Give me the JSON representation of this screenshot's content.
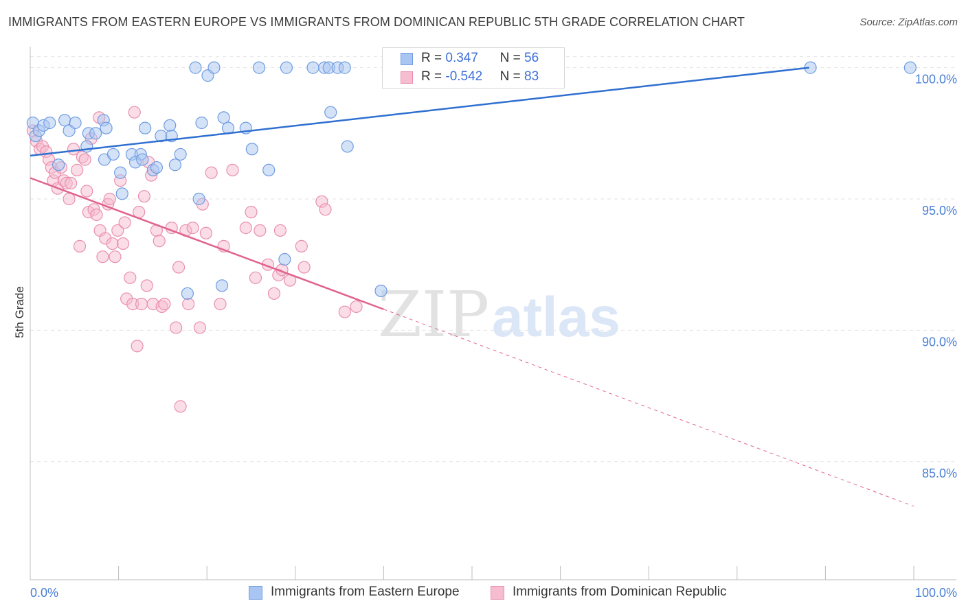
{
  "title": "IMMIGRANTS FROM EASTERN EUROPE VS IMMIGRANTS FROM DOMINICAN REPUBLIC 5TH GRADE CORRELATION CHART",
  "source": "Source: ZipAtlas.com",
  "watermark": {
    "zip": "ZIP",
    "atlas": "atlas"
  },
  "colors": {
    "blue_fill": "#a9c6f2",
    "blue_stroke": "#6f9ce0",
    "blue_line": "#2f6fd0",
    "pink_fill": "#f6bcd0",
    "pink_stroke": "#e98fae",
    "pink_line": "#e0648e",
    "grid": "#e2e2e2",
    "tick_label": "#4a7fd4"
  },
  "legend": {
    "rows": [
      {
        "r_label": "R = ",
        "r_value": "0.347",
        "n_label": "N = ",
        "n_value": "56"
      },
      {
        "r_label": "R = ",
        "r_value": "-0.542",
        "n_label": "N = ",
        "n_value": "83"
      }
    ]
  },
  "chart_data": {
    "type": "scatter",
    "title": "IMMIGRANTS FROM EASTERN EUROPE VS IMMIGRANTS FROM DOMINICAN REPUBLIC 5TH GRADE CORRELATION CHART",
    "xlabel": "",
    "ylabel": "5th Grade",
    "xlim": [
      0,
      100
    ],
    "ylim": [
      80.5,
      100.8
    ],
    "x_tick_labels": [
      "0.0%",
      "100.0%"
    ],
    "y_ticks": [
      85,
      90,
      95,
      100
    ],
    "y_tick_labels": [
      "85.0%",
      "90.0%",
      "95.0%",
      "100.0%"
    ],
    "grid": true,
    "legend_position": "top-center",
    "series": [
      {
        "name": "Immigrants from Eastern Europe",
        "color": "#a9c6f2",
        "r": 0.347,
        "n": 56,
        "trend": {
          "x0": 0,
          "y0": 96.65,
          "x1": 100,
          "y1": 100.45,
          "dash_after": null
        },
        "points": [
          [
            0.3,
            97.9
          ],
          [
            0.6,
            97.4
          ],
          [
            1.0,
            97.6
          ],
          [
            1.5,
            97.8
          ],
          [
            2.2,
            97.9
          ],
          [
            3.2,
            96.3
          ],
          [
            3.9,
            98.0
          ],
          [
            4.4,
            97.6
          ],
          [
            5.1,
            97.9
          ],
          [
            6.4,
            97.0
          ],
          [
            6.6,
            97.5
          ],
          [
            7.4,
            97.5
          ],
          [
            8.3,
            98.0
          ],
          [
            8.6,
            97.7
          ],
          [
            8.4,
            96.5
          ],
          [
            9.4,
            96.7
          ],
          [
            10.2,
            96.0
          ],
          [
            10.4,
            95.2
          ],
          [
            11.5,
            96.7
          ],
          [
            12.5,
            96.7
          ],
          [
            11.9,
            96.4
          ],
          [
            12.7,
            96.5
          ],
          [
            13.0,
            97.7
          ],
          [
            13.9,
            96.1
          ],
          [
            14.3,
            96.2
          ],
          [
            14.8,
            97.4
          ],
          [
            15.8,
            97.8
          ],
          [
            16.0,
            97.4
          ],
          [
            17.0,
            96.7
          ],
          [
            16.4,
            96.3
          ],
          [
            17.8,
            91.4
          ],
          [
            18.7,
            100.0
          ],
          [
            19.1,
            95.0
          ],
          [
            19.4,
            97.9
          ],
          [
            20.1,
            99.7
          ],
          [
            20.8,
            100.0
          ],
          [
            21.7,
            91.7
          ],
          [
            21.9,
            98.1
          ],
          [
            22.4,
            97.7
          ],
          [
            24.4,
            97.7
          ],
          [
            25.1,
            96.9
          ],
          [
            25.9,
            100.0
          ],
          [
            27.0,
            96.1
          ],
          [
            28.8,
            92.7
          ],
          [
            29.0,
            100.0
          ],
          [
            32.0,
            100.0
          ],
          [
            33.3,
            100.0
          ],
          [
            33.8,
            100.0
          ],
          [
            34.0,
            98.3
          ],
          [
            34.8,
            100.0
          ],
          [
            35.6,
            100.0
          ],
          [
            35.9,
            97.0
          ],
          [
            39.7,
            91.5
          ],
          [
            44.1,
            100.0
          ],
          [
            88.3,
            100.0
          ],
          [
            99.6,
            100.0
          ]
        ]
      },
      {
        "name": "Immigrants from Dominican Republic",
        "color": "#f6bcd0",
        "r": -0.542,
        "n": 83,
        "trend": {
          "x0": 0,
          "y0": 95.8,
          "x1": 100,
          "y1": 83.3,
          "dash_after": 40
        },
        "points": [
          [
            0.3,
            97.6
          ],
          [
            0.7,
            97.2
          ],
          [
            1.1,
            96.9
          ],
          [
            1.4,
            97.0
          ],
          [
            1.8,
            96.8
          ],
          [
            2.1,
            96.5
          ],
          [
            2.4,
            96.2
          ],
          [
            2.6,
            95.7
          ],
          [
            2.8,
            96.0
          ],
          [
            3.1,
            95.4
          ],
          [
            3.5,
            96.2
          ],
          [
            3.8,
            95.7
          ],
          [
            4.1,
            95.6
          ],
          [
            4.4,
            95.0
          ],
          [
            4.6,
            95.6
          ],
          [
            4.9,
            96.9
          ],
          [
            5.3,
            96.1
          ],
          [
            5.6,
            93.2
          ],
          [
            5.9,
            96.6
          ],
          [
            6.2,
            96.5
          ],
          [
            6.4,
            95.3
          ],
          [
            6.6,
            94.5
          ],
          [
            6.9,
            97.3
          ],
          [
            7.2,
            94.6
          ],
          [
            7.5,
            94.4
          ],
          [
            7.8,
            98.1
          ],
          [
            7.9,
            93.8
          ],
          [
            8.2,
            92.8
          ],
          [
            8.5,
            93.5
          ],
          [
            8.8,
            94.8
          ],
          [
            9.0,
            95.0
          ],
          [
            9.3,
            93.3
          ],
          [
            9.6,
            92.8
          ],
          [
            9.9,
            93.8
          ],
          [
            10.2,
            95.7
          ],
          [
            10.5,
            93.3
          ],
          [
            10.7,
            94.1
          ],
          [
            10.9,
            91.2
          ],
          [
            11.3,
            92.0
          ],
          [
            11.6,
            91.0
          ],
          [
            11.8,
            98.3
          ],
          [
            12.1,
            89.4
          ],
          [
            12.3,
            94.5
          ],
          [
            12.6,
            91.0
          ],
          [
            12.9,
            95.1
          ],
          [
            13.2,
            91.7
          ],
          [
            13.4,
            96.4
          ],
          [
            13.7,
            95.9
          ],
          [
            13.9,
            91.0
          ],
          [
            14.3,
            93.8
          ],
          [
            14.6,
            93.4
          ],
          [
            14.9,
            90.9
          ],
          [
            15.2,
            91.0
          ],
          [
            16.0,
            93.9
          ],
          [
            16.5,
            90.1
          ],
          [
            16.8,
            92.4
          ],
          [
            17.0,
            87.1
          ],
          [
            17.6,
            93.8
          ],
          [
            17.9,
            91.0
          ],
          [
            18.4,
            93.9
          ],
          [
            19.2,
            90.1
          ],
          [
            19.5,
            94.8
          ],
          [
            19.9,
            93.7
          ],
          [
            20.5,
            96.0
          ],
          [
            21.5,
            91.0
          ],
          [
            21.9,
            93.2
          ],
          [
            22.9,
            96.1
          ],
          [
            24.4,
            93.9
          ],
          [
            25.0,
            94.5
          ],
          [
            25.5,
            92.0
          ],
          [
            26.0,
            93.8
          ],
          [
            26.9,
            92.5
          ],
          [
            27.6,
            91.4
          ],
          [
            28.1,
            92.1
          ],
          [
            28.3,
            93.8
          ],
          [
            28.5,
            92.3
          ],
          [
            29.4,
            91.9
          ],
          [
            30.7,
            93.2
          ],
          [
            31.0,
            92.4
          ],
          [
            33.0,
            94.9
          ],
          [
            33.4,
            94.6
          ],
          [
            35.6,
            90.7
          ],
          [
            36.9,
            90.9
          ]
        ]
      }
    ]
  },
  "bottom_legend": [
    {
      "label": "Immigrants from Eastern Europe"
    },
    {
      "label": "Immigrants from Dominican Republic"
    }
  ]
}
